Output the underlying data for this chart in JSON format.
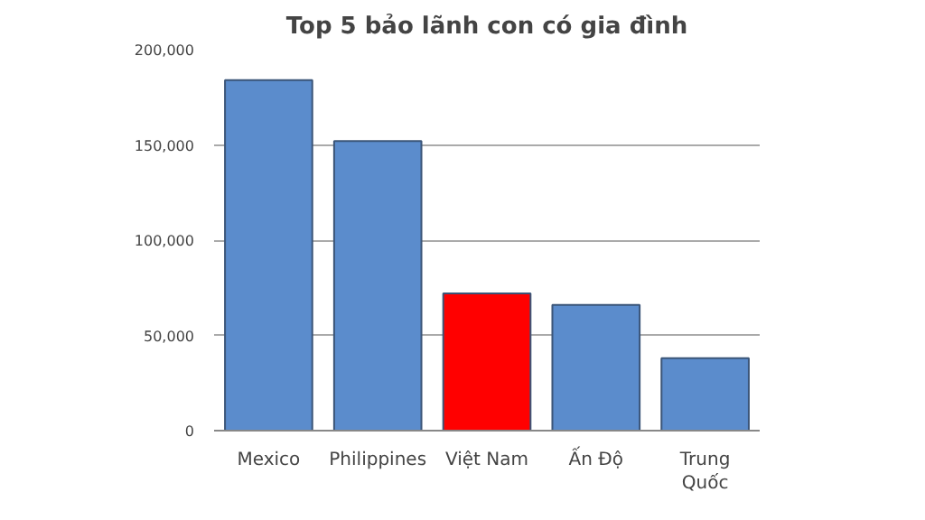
{
  "chart_data": {
    "type": "bar",
    "title": "Top 5 bảo lãnh con có gia đình",
    "categories": [
      "Mexico",
      "Philippines",
      "Việt Nam",
      "Ấn Độ",
      "Trung Quốc"
    ],
    "values": [
      184000,
      152000,
      72000,
      66000,
      38000
    ],
    "colors": [
      "#5b8ccc",
      "#5b8ccc",
      "#ff0000",
      "#5b8ccc",
      "#5b8ccc"
    ],
    "ylim": [
      0,
      200000
    ],
    "yticks": [
      0,
      {
        "value": 50000,
        "label": "50,000"
      },
      {
        "value": 100000,
        "label": "100,000"
      },
      {
        "value": 150000,
        "label": "150,000"
      },
      {
        "value": 200000,
        "label": "200,000"
      }
    ],
    "grid": "y"
  }
}
